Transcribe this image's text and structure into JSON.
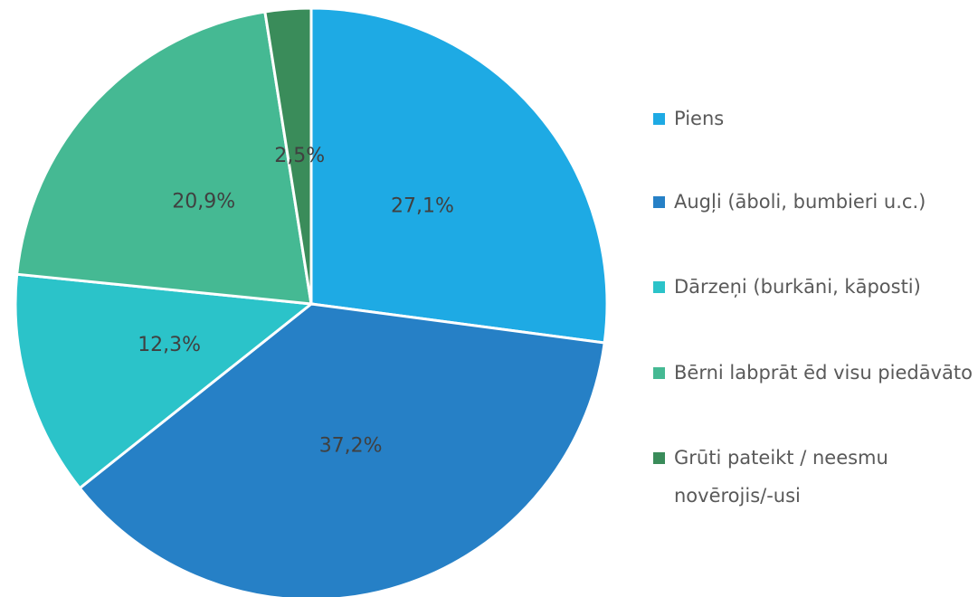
{
  "chart_data": {
    "type": "pie",
    "categories": [
      "Piens",
      "Augļi (āboli, bumbieri u.c.)",
      "Dārzeņi (burkāni, kāposti)",
      "Bērni labprāt ēd visu piedāvāto",
      "Grūti pateikt / neesmu novērojis/-usi"
    ],
    "values": [
      27.1,
      37.2,
      12.3,
      20.9,
      2.5
    ],
    "value_labels": [
      "27,1%",
      "37,2%",
      "12,3%",
      "20,9%",
      "2,5%"
    ],
    "colors": [
      "#1eaae4",
      "#2680c6",
      "#2bc3c9",
      "#45b993",
      "#3a8c5a"
    ],
    "legend": "right"
  }
}
